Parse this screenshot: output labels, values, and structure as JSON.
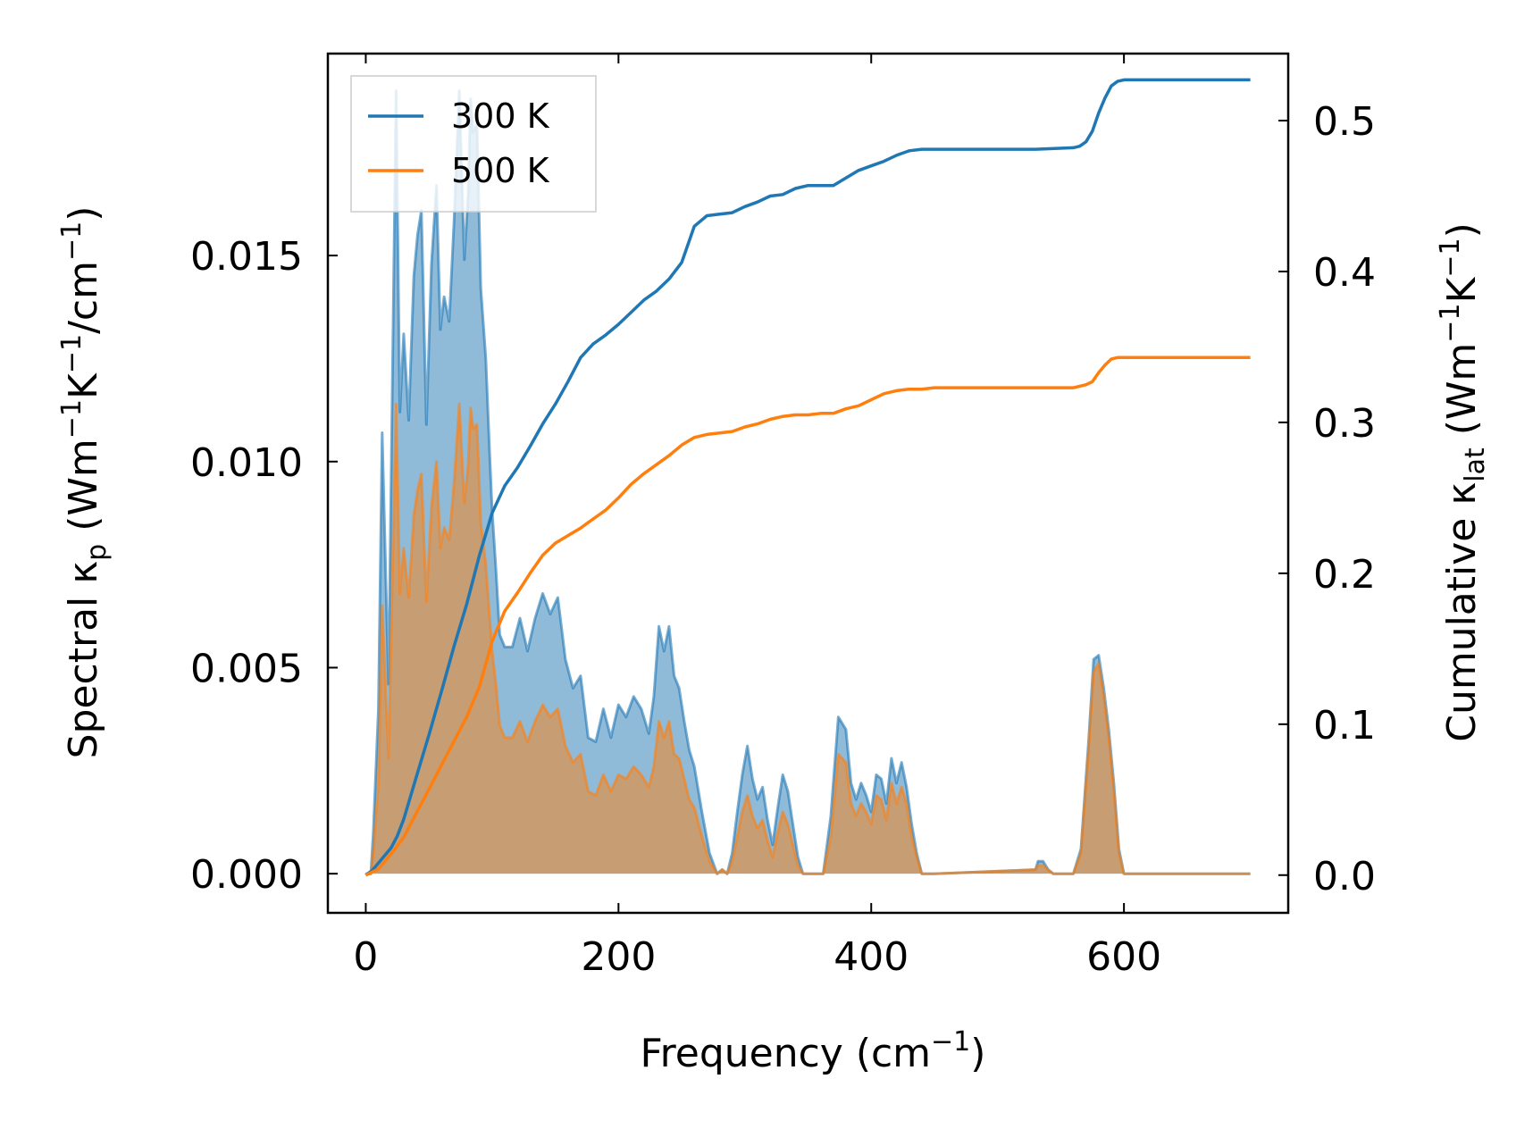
{
  "chart_data": {
    "type": "area+line (dual y-axis)",
    "xlabel": "Frequency (cm⁻¹)",
    "ylabel_left": "Spectral κp (Wm⁻¹K⁻¹/cm⁻¹)",
    "ylabel_right": "Cumulative κlat (Wm⁻¹K⁻¹)",
    "xlim": [
      -30,
      730
    ],
    "ylim_left": [
      -0.00095,
      0.0199
    ],
    "ylim_right": [
      -0.025,
      0.5444
    ],
    "x_ticks": [
      "0",
      "200",
      "400",
      "600"
    ],
    "y_left_ticks": [
      "0.000",
      "0.005",
      "0.010",
      "0.015"
    ],
    "y_right_ticks": [
      "0.0",
      "0.1",
      "0.2",
      "0.3",
      "0.4",
      "0.5"
    ],
    "legend": {
      "position": "top-left",
      "entries": [
        "300 K",
        "500 K"
      ]
    },
    "colors": {
      "300 K": "#1f77b4",
      "500 K": "#ff7f0e"
    },
    "series": [
      {
        "name": "300 K",
        "spectral_frequency": [
          0,
          2,
          4,
          6,
          10,
          13,
          18,
          24,
          27,
          30,
          34,
          38,
          41,
          44,
          48,
          52,
          56,
          59,
          62,
          66,
          70,
          74,
          78,
          81,
          83,
          85,
          88,
          91,
          95,
          98,
          100,
          103,
          106,
          110,
          116,
          122,
          128,
          134,
          140,
          146,
          152,
          158,
          164,
          170,
          176,
          182,
          188,
          194,
          200,
          206,
          212,
          218,
          224,
          228,
          232,
          236,
          240,
          244,
          248,
          252,
          256,
          260,
          266,
          272,
          278,
          282,
          286,
          290,
          294,
          298,
          302,
          306,
          310,
          314,
          318,
          322,
          326,
          330,
          334,
          338,
          342,
          346,
          350,
          355,
          362,
          368,
          374,
          380,
          384,
          388,
          392,
          396,
          400,
          404,
          408,
          412,
          416,
          420,
          424,
          428,
          432,
          436,
          440,
          446,
          450,
          530,
          532,
          536,
          540,
          544,
          560,
          566,
          572,
          576,
          580,
          584,
          588,
          592,
          596,
          600,
          604,
          608,
          614,
          700
        ],
        "spectral_values": [
          0,
          0,
          0,
          0.001,
          0.004,
          0.0107,
          0.0046,
          0.019,
          0.0112,
          0.0131,
          0.011,
          0.0145,
          0.0155,
          0.0161,
          0.0109,
          0.0148,
          0.0167,
          0.0132,
          0.014,
          0.0134,
          0.0159,
          0.019,
          0.0149,
          0.0165,
          0.0188,
          0.018,
          0.0182,
          0.0142,
          0.0125,
          0.0102,
          0.0088,
          0.0074,
          0.0058,
          0.0055,
          0.0055,
          0.0062,
          0.0054,
          0.0062,
          0.0068,
          0.0063,
          0.0067,
          0.0052,
          0.0045,
          0.0048,
          0.0033,
          0.0032,
          0.004,
          0.0033,
          0.0041,
          0.0038,
          0.0043,
          0.004,
          0.0034,
          0.0043,
          0.006,
          0.0054,
          0.006,
          0.0048,
          0.0045,
          0.0037,
          0.003,
          0.0026,
          0.0015,
          0.0005,
          0,
          0.0001,
          0,
          0.0005,
          0.0015,
          0.0024,
          0.0031,
          0.0023,
          0.0018,
          0.0021,
          0.0013,
          0.0007,
          0.0016,
          0.0024,
          0.002,
          0.0012,
          0.0004,
          0,
          0,
          0,
          0,
          0.0014,
          0.0038,
          0.0035,
          0.0022,
          0.0018,
          0.0022,
          0.0019,
          0.0015,
          0.0024,
          0.0023,
          0.0017,
          0.0028,
          0.0022,
          0.0027,
          0.0021,
          0.0012,
          0.0005,
          0,
          0,
          0,
          0.0001,
          0.0003,
          0.0003,
          0.0001,
          0,
          0,
          0.0006,
          0.0032,
          0.0052,
          0.0053,
          0.0045,
          0.0035,
          0.0022,
          0.0006,
          0,
          0,
          0,
          0,
          0
        ],
        "cumulative_frequency": [
          0,
          5,
          10,
          15,
          20,
          25,
          30,
          40,
          50,
          60,
          70,
          80,
          90,
          100,
          110,
          120,
          130,
          140,
          150,
          160,
          170,
          180,
          190,
          200,
          210,
          220,
          230,
          240,
          250,
          260,
          270,
          280,
          290,
          300,
          310,
          320,
          330,
          340,
          350,
          360,
          370,
          380,
          390,
          400,
          410,
          420,
          430,
          440,
          450,
          500,
          530,
          560,
          565,
          570,
          575,
          580,
          585,
          590,
          595,
          600,
          605,
          610,
          620,
          700
        ],
        "cumulative_values": [
          0,
          0.003,
          0.008,
          0.013,
          0.018,
          0.026,
          0.037,
          0.065,
          0.093,
          0.122,
          0.152,
          0.18,
          0.212,
          0.24,
          0.258,
          0.27,
          0.284,
          0.299,
          0.312,
          0.327,
          0.343,
          0.352,
          0.358,
          0.365,
          0.373,
          0.381,
          0.387,
          0.395,
          0.406,
          0.43,
          0.437,
          0.438,
          0.439,
          0.443,
          0.446,
          0.45,
          0.451,
          0.455,
          0.457,
          0.457,
          0.457,
          0.462,
          0.467,
          0.47,
          0.473,
          0.477,
          0.48,
          0.481,
          0.481,
          0.481,
          0.481,
          0.482,
          0.483,
          0.486,
          0.493,
          0.505,
          0.515,
          0.523,
          0.526,
          0.527,
          0.527,
          0.527,
          0.527,
          0.527
        ]
      },
      {
        "name": "500 K",
        "spectral_frequency": [
          0,
          2,
          4,
          6,
          10,
          13,
          18,
          24,
          27,
          30,
          34,
          38,
          41,
          44,
          48,
          52,
          56,
          59,
          62,
          66,
          70,
          74,
          78,
          81,
          83,
          85,
          88,
          91,
          95,
          98,
          100,
          103,
          106,
          110,
          116,
          122,
          128,
          134,
          140,
          146,
          152,
          158,
          164,
          170,
          176,
          182,
          188,
          194,
          200,
          206,
          212,
          218,
          224,
          228,
          232,
          236,
          240,
          244,
          248,
          252,
          256,
          260,
          266,
          272,
          278,
          282,
          286,
          290,
          294,
          298,
          302,
          306,
          310,
          314,
          318,
          322,
          326,
          330,
          334,
          338,
          342,
          346,
          350,
          355,
          362,
          368,
          374,
          380,
          384,
          388,
          392,
          396,
          400,
          404,
          408,
          412,
          416,
          420,
          424,
          428,
          432,
          436,
          440,
          446,
          450,
          530,
          532,
          536,
          540,
          544,
          560,
          566,
          572,
          576,
          580,
          584,
          588,
          592,
          596,
          600,
          604,
          608,
          614,
          700
        ],
        "spectral_values": [
          0,
          0,
          0,
          0.0005,
          0.0022,
          0.0065,
          0.0028,
          0.0114,
          0.0068,
          0.0079,
          0.0067,
          0.0087,
          0.0093,
          0.0097,
          0.0066,
          0.0089,
          0.01,
          0.0079,
          0.0084,
          0.0081,
          0.0095,
          0.0114,
          0.009,
          0.0099,
          0.0113,
          0.0108,
          0.0109,
          0.0085,
          0.0075,
          0.0062,
          0.0054,
          0.0046,
          0.0036,
          0.0033,
          0.0033,
          0.0037,
          0.0032,
          0.0037,
          0.0041,
          0.0038,
          0.004,
          0.0031,
          0.0027,
          0.0029,
          0.002,
          0.0019,
          0.0024,
          0.002,
          0.0024,
          0.0023,
          0.0026,
          0.0024,
          0.0021,
          0.0026,
          0.0037,
          0.0033,
          0.0037,
          0.0029,
          0.0028,
          0.0023,
          0.0018,
          0.0016,
          0.0009,
          0.0003,
          0,
          0.0001,
          0,
          0.0003,
          0.0009,
          0.0015,
          0.0019,
          0.0014,
          0.0011,
          0.0013,
          0.0008,
          0.0004,
          0.001,
          0.0015,
          0.0012,
          0.0007,
          0.0002,
          0,
          0,
          0,
          0,
          0.0009,
          0.0029,
          0.0027,
          0.0017,
          0.0014,
          0.0017,
          0.0015,
          0.0012,
          0.0019,
          0.0018,
          0.0013,
          0.0022,
          0.0017,
          0.0021,
          0.0017,
          0.0009,
          0.0004,
          0,
          0,
          0,
          0.0001,
          0.0002,
          0.0002,
          0.0001,
          0,
          0,
          0.0005,
          0.003,
          0.0049,
          0.0051,
          0.0043,
          0.0033,
          0.002,
          0.0005,
          0,
          0,
          0,
          0,
          0
        ],
        "cumulative_frequency": [
          0,
          5,
          10,
          15,
          20,
          30,
          40,
          50,
          60,
          70,
          80,
          90,
          100,
          110,
          120,
          130,
          140,
          150,
          160,
          170,
          180,
          190,
          200,
          210,
          220,
          230,
          240,
          250,
          260,
          270,
          280,
          290,
          300,
          310,
          320,
          330,
          340,
          350,
          360,
          370,
          380,
          390,
          400,
          410,
          420,
          430,
          440,
          450,
          500,
          530,
          560,
          565,
          570,
          575,
          580,
          585,
          590,
          595,
          600,
          605,
          610,
          620,
          700
        ],
        "cumulative_values": [
          0,
          0.002,
          0.004,
          0.009,
          0.014,
          0.025,
          0.041,
          0.057,
          0.073,
          0.089,
          0.105,
          0.125,
          0.155,
          0.175,
          0.187,
          0.2,
          0.212,
          0.22,
          0.225,
          0.23,
          0.236,
          0.242,
          0.25,
          0.259,
          0.266,
          0.272,
          0.278,
          0.285,
          0.29,
          0.292,
          0.293,
          0.294,
          0.297,
          0.299,
          0.302,
          0.304,
          0.305,
          0.305,
          0.306,
          0.306,
          0.309,
          0.311,
          0.315,
          0.319,
          0.321,
          0.322,
          0.322,
          0.323,
          0.323,
          0.323,
          0.323,
          0.324,
          0.325,
          0.327,
          0.333,
          0.338,
          0.342,
          0.343,
          0.343,
          0.343,
          0.343,
          0.343,
          0.343
        ]
      }
    ]
  }
}
